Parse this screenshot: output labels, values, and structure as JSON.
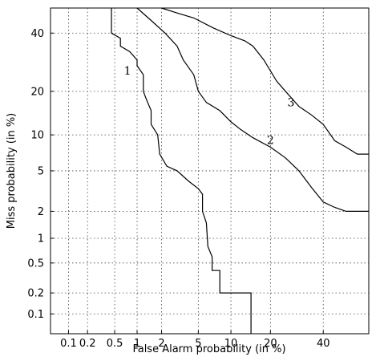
{
  "chart_data": {
    "type": "line",
    "title": "",
    "xlabel": "False Alarm probability (in %)",
    "ylabel": "Miss probability (in %)",
    "x_scale": "normal-deviate",
    "y_scale": "normal-deviate",
    "xlim": [
      0.05,
      60
    ],
    "ylim": [
      0.05,
      50
    ],
    "xticks": [
      "0.1",
      "0.2",
      "0.5",
      "1",
      "2",
      "5",
      "10",
      "20",
      "40"
    ],
    "yticks": [
      "0.1",
      "0.2",
      "0.5",
      "1",
      "2",
      "5",
      "10",
      "20",
      "40"
    ],
    "grid": true,
    "legend": "none",
    "series": [
      {
        "name": "1",
        "points": [
          [
            0.45,
            50
          ],
          [
            0.45,
            40
          ],
          [
            0.6,
            38
          ],
          [
            0.6,
            35
          ],
          [
            0.8,
            33
          ],
          [
            1.0,
            30
          ],
          [
            1.0,
            28
          ],
          [
            1.2,
            25
          ],
          [
            1.2,
            20
          ],
          [
            1.3,
            18
          ],
          [
            1.5,
            15
          ],
          [
            1.5,
            12
          ],
          [
            1.8,
            10
          ],
          [
            1.9,
            7
          ],
          [
            2.3,
            5.5
          ],
          [
            3.0,
            5
          ],
          [
            4.0,
            4
          ],
          [
            5.0,
            3.4
          ],
          [
            5.5,
            3
          ],
          [
            5.5,
            2
          ],
          [
            6.0,
            1.5
          ],
          [
            6.2,
            0.8
          ],
          [
            6.8,
            0.6
          ],
          [
            6.8,
            0.4
          ],
          [
            8.0,
            0.4
          ],
          [
            8.0,
            0.2
          ],
          [
            12,
            0.2
          ],
          [
            14.5,
            0.2
          ],
          [
            14.5,
            0.05
          ]
        ]
      },
      {
        "name": "2",
        "points": [
          [
            1.0,
            50
          ],
          [
            1.5,
            45
          ],
          [
            2.2,
            40
          ],
          [
            3.0,
            35
          ],
          [
            3.5,
            30
          ],
          [
            4.5,
            25
          ],
          [
            5.0,
            20
          ],
          [
            6.0,
            17
          ],
          [
            8.0,
            15
          ],
          [
            10,
            12.5
          ],
          [
            12,
            11
          ],
          [
            15,
            9.5
          ],
          [
            20,
            8
          ],
          [
            25,
            6.5
          ],
          [
            30,
            5
          ],
          [
            35,
            3.5
          ],
          [
            40,
            2.5
          ],
          [
            45,
            2.2
          ],
          [
            50,
            2
          ],
          [
            60,
            2
          ]
        ]
      },
      {
        "name": "3",
        "points": [
          [
            2.0,
            50
          ],
          [
            3.0,
            48
          ],
          [
            4.5,
            46
          ],
          [
            7,
            42
          ],
          [
            10,
            39
          ],
          [
            13,
            37
          ],
          [
            15,
            35
          ],
          [
            18,
            30
          ],
          [
            22,
            23
          ],
          [
            25,
            20
          ],
          [
            30,
            16
          ],
          [
            35,
            14
          ],
          [
            40,
            12
          ],
          [
            45,
            9
          ],
          [
            50,
            8
          ],
          [
            55,
            7
          ],
          [
            60,
            7
          ]
        ]
      }
    ],
    "curve_labels": [
      {
        "text": "1",
        "x": 0.75,
        "y": 25
      },
      {
        "text": "2",
        "x": 20,
        "y": 8.5
      },
      {
        "text": "3",
        "x": 27,
        "y": 16
      }
    ]
  }
}
